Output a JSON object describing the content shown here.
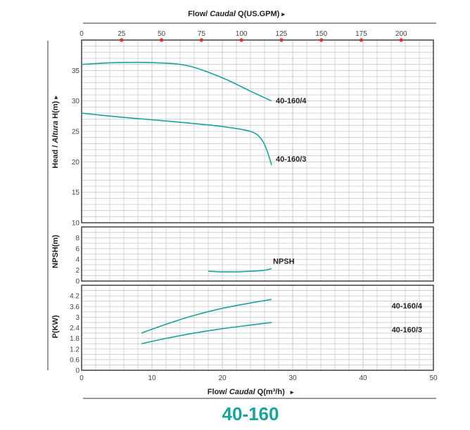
{
  "top_axis": {
    "title_prefix": "Flow/ ",
    "title_italic": "Caudal",
    "title_suffix": " Q(US.GPM)",
    "arrow": "▸",
    "ticks": [
      "0",
      "25",
      "50",
      "75",
      "100",
      "125",
      "150",
      "175",
      "200"
    ],
    "tick_values": [
      0,
      25,
      50,
      75,
      100,
      125,
      150,
      175,
      200
    ],
    "marker_color": "#e03030"
  },
  "bottom_axis": {
    "title_prefix": "Flow/ ",
    "title_italic": "Caudal",
    "title_suffix": " Q(m³/h)",
    "arrow": "▸",
    "ticks": [
      "0",
      "10",
      "20",
      "30",
      "40",
      "50"
    ]
  },
  "head_axis": {
    "title_prefix": "Head / ",
    "title_italic": "Altura",
    "title_suffix": " H(m)",
    "arrow": "▸",
    "ticks": [
      "10",
      "15",
      "20",
      "25",
      "30",
      "35"
    ]
  },
  "npsh_axis": {
    "title": "NPSH(m)",
    "ticks": [
      "0",
      "2",
      "4",
      "6",
      "8"
    ]
  },
  "power_axis": {
    "title": "P(KW)",
    "ticks": [
      "0",
      "0.6",
      "1.2",
      "1.8",
      "2.4",
      "3",
      "3.6",
      "4.2"
    ]
  },
  "model_title": "40-160",
  "colors": {
    "curve": "#1aa39b",
    "grid": "#c8c8c8",
    "frame": "#333333"
  },
  "chart_data": [
    {
      "type": "line",
      "panel": "head",
      "ylabel": "Head / Altura H(m)",
      "xlabel": "Flow/ Caudal Q(m³/h)",
      "xlim": [
        0,
        50
      ],
      "ylim": [
        10,
        40
      ],
      "series": [
        {
          "name": "40-160/4",
          "x": [
            0,
            5,
            10,
            15,
            20,
            24,
            27
          ],
          "y": [
            36.0,
            36.3,
            36.3,
            35.8,
            33.8,
            31.6,
            30.0
          ]
        },
        {
          "name": "40-160/3",
          "x": [
            0,
            5,
            10,
            15,
            20,
            24,
            25.5,
            26.3,
            27
          ],
          "y": [
            28.0,
            27.4,
            26.9,
            26.4,
            25.8,
            25.0,
            23.8,
            22.0,
            19.5
          ]
        }
      ]
    },
    {
      "type": "line",
      "panel": "npsh",
      "ylabel": "NPSH(m)",
      "xlim": [
        0,
        50
      ],
      "ylim": [
        0,
        10
      ],
      "series": [
        {
          "name": "NPSH",
          "x": [
            18,
            20,
            22,
            24,
            26,
            27
          ],
          "y": [
            1.8,
            1.7,
            1.7,
            1.8,
            2.0,
            2.3
          ]
        }
      ]
    },
    {
      "type": "line",
      "panel": "power",
      "ylabel": "P(KW)",
      "xlim": [
        0,
        50
      ],
      "ylim": [
        0,
        4.8
      ],
      "series": [
        {
          "name": "40-160/4",
          "x": [
            8.5,
            12,
            16,
            20,
            24,
            27
          ],
          "y": [
            2.1,
            2.6,
            3.1,
            3.5,
            3.8,
            4.0
          ]
        },
        {
          "name": "40-160/3",
          "x": [
            8.5,
            12,
            16,
            20,
            24,
            27
          ],
          "y": [
            1.5,
            1.8,
            2.1,
            2.35,
            2.55,
            2.7
          ]
        }
      ]
    }
  ]
}
